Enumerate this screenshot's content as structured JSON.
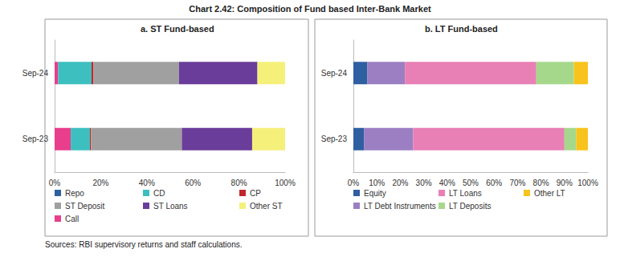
{
  "title": "Chart 2.42: Composition of Fund based Inter-Bank Market",
  "source": "Sources: RBI supervisory returns and staff calculations.",
  "chart_data": [
    {
      "type": "bar",
      "title": "a. ST Fund-based",
      "orientation": "horizontal",
      "stacked": true,
      "grid": false,
      "legend": "bottom",
      "categories": [
        "Sep-23",
        "Sep-24"
      ],
      "series": [
        {
          "name": "Repo",
          "color": "#2e5fa1",
          "values": [
            0,
            0
          ]
        },
        {
          "name": "Call",
          "color": "#e83e8c",
          "values": [
            7,
            1.5
          ]
        },
        {
          "name": "CD",
          "color": "#3dbfbf",
          "values": [
            8.3,
            14.5
          ]
        },
        {
          "name": "CP",
          "color": "#c0272d",
          "values": [
            0.5,
            0.8
          ]
        },
        {
          "name": "ST Deposit",
          "color": "#a0a0a0",
          "values": [
            39.4,
            37.2
          ]
        },
        {
          "name": "ST Loans",
          "color": "#6a3d9a",
          "values": [
            30.5,
            34
          ]
        },
        {
          "name": "Other ST",
          "color": "#f5f07a",
          "values": [
            14.3,
            12
          ]
        }
      ],
      "xlim": [
        0,
        100
      ],
      "xticks": [
        {
          "value": 0,
          "label": "0%"
        },
        {
          "value": 20,
          "label": "20%"
        },
        {
          "value": 40,
          "label": "40%"
        },
        {
          "value": 60,
          "label": "60%"
        },
        {
          "value": 80,
          "label": "80%"
        },
        {
          "value": 100,
          "label": "100%"
        }
      ]
    },
    {
      "type": "bar",
      "title": "b. LT Fund-based",
      "orientation": "horizontal",
      "stacked": true,
      "grid": false,
      "legend": "bottom",
      "categories": [
        "Sep-23",
        "Sep-24"
      ],
      "series": [
        {
          "name": "Equity",
          "color": "#2e5fa1",
          "values": [
            4.5,
            6
          ]
        },
        {
          "name": "LT Debt Instruments",
          "color": "#9b7fc2",
          "values": [
            21,
            16
          ]
        },
        {
          "name": "LT Loans",
          "color": "#e87fb5",
          "values": [
            64.5,
            56
          ]
        },
        {
          "name": "LT Deposits",
          "color": "#a6d88c",
          "values": [
            5,
            16
          ]
        },
        {
          "name": "Other LT",
          "color": "#f7c31c",
          "values": [
            5,
            6
          ]
        }
      ],
      "xlim": [
        0,
        100
      ],
      "xticks": [
        {
          "value": 0,
          "label": "0%"
        },
        {
          "value": 10,
          "label": "10%"
        },
        {
          "value": 20,
          "label": "20%"
        },
        {
          "value": 30,
          "label": "30%"
        },
        {
          "value": 40,
          "label": "40%"
        },
        {
          "value": 50,
          "label": "50%"
        },
        {
          "value": 60,
          "label": "60%"
        },
        {
          "value": 70,
          "label": "70%"
        },
        {
          "value": 80,
          "label": "80%"
        },
        {
          "value": 90,
          "label": "90%"
        },
        {
          "value": 100,
          "label": "100%"
        }
      ]
    }
  ]
}
